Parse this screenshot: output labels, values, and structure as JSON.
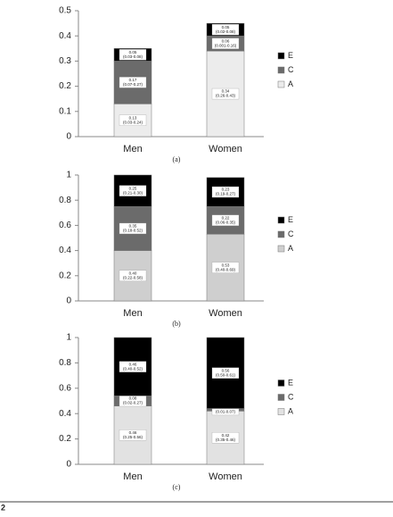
{
  "chart_data": [
    {
      "type": "bar",
      "stacked": true,
      "caption": "(a)",
      "categories": [
        "Men",
        "Women"
      ],
      "ylim": [
        0,
        0.5
      ],
      "yticks": [
        0,
        0.1,
        0.2,
        0.3,
        0.4,
        0.5
      ],
      "legend": "right",
      "series": [
        {
          "name": "A",
          "color": "#ececec",
          "values": [
            0.13,
            0.34
          ],
          "ci_labels": [
            "(0.03-0.24)",
            "(0.26-0.43)"
          ]
        },
        {
          "name": "C",
          "color": "#6b6b6b",
          "values": [
            0.17,
            0.06
          ],
          "ci_labels": [
            "(0.07-0.27)",
            "(0.001-0.16)"
          ]
        },
        {
          "name": "E",
          "color": "#000000",
          "values": [
            0.05,
            0.05
          ],
          "ci_labels": [
            "(0.03-0.08)",
            "(0.02-0.08)"
          ]
        }
      ]
    },
    {
      "type": "bar",
      "stacked": true,
      "caption": "(b)",
      "categories": [
        "Men",
        "Women"
      ],
      "ylim": [
        0,
        1
      ],
      "yticks": [
        0,
        0.2,
        0.4,
        0.6,
        0.8,
        1
      ],
      "legend": "right",
      "series": [
        {
          "name": "A",
          "color": "#cfcfcf",
          "values": [
            0.4,
            0.53
          ],
          "value_labels": [
            "0.40",
            "0.53"
          ],
          "ci_labels": [
            "(0.22-0.58)",
            "(0.40-0.69)"
          ]
        },
        {
          "name": "C",
          "color": "#6b6b6b",
          "values": [
            0.35,
            0.22
          ],
          "value_labels": [
            "0.35",
            "0.22"
          ],
          "ci_labels": [
            "(0.18-0.52)",
            "(0.06-0.35)"
          ]
        },
        {
          "name": "E",
          "color": "#000000",
          "values": [
            0.25,
            0.23
          ],
          "value_labels": [
            "0.25",
            "0.23"
          ],
          "ci_labels": [
            "(0.21-0.30)",
            "(0.19-0.27)"
          ]
        }
      ]
    },
    {
      "type": "bar",
      "stacked": true,
      "caption": "(c)",
      "categories": [
        "Men",
        "Women"
      ],
      "ylim": [
        0,
        1
      ],
      "yticks": [
        0,
        0.2,
        0.4,
        0.6,
        0.8,
        1
      ],
      "legend": "right",
      "series": [
        {
          "name": "A",
          "color": "#e2e2e2",
          "values": [
            0.46,
            0.42
          ],
          "ci_labels": [
            "(0.25-0.56)",
            "(0.35-0.46)"
          ]
        },
        {
          "name": "C",
          "color": "#6b6b6b",
          "values": [
            0.08,
            0.02
          ],
          "ci_labels": [
            "(0.02-0.27)",
            "(0.01-0.07)"
          ]
        },
        {
          "name": "E",
          "color": "#000000",
          "values": [
            0.46,
            0.56
          ],
          "ci_labels": [
            "(0.40-0.52)",
            "(0.50-0.61)"
          ]
        }
      ]
    }
  ],
  "page_number": "2"
}
